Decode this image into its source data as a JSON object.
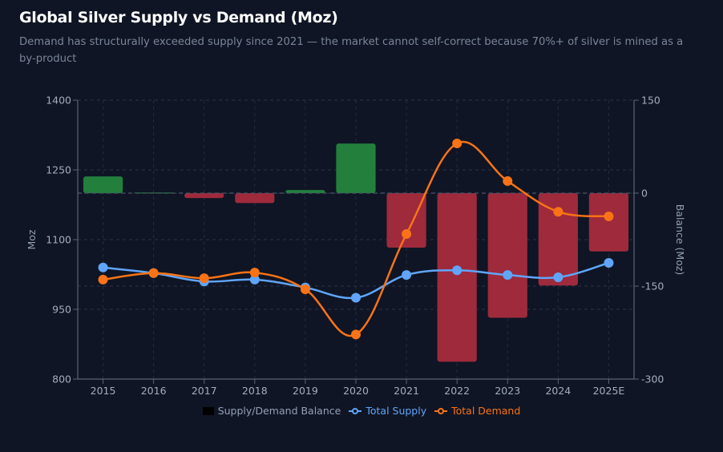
{
  "title": "Global Silver Supply vs Demand (Moz)",
  "subtitle": "Demand has structurally exceeded supply since 2021 — the market cannot self-correct because 70%+ of silver is mined as a by-product",
  "chart_data": {
    "type": "bar+line",
    "title": "Global Silver Supply vs Demand (Moz)",
    "categories": [
      "2015",
      "2016",
      "2017",
      "2018",
      "2019",
      "2020",
      "2021",
      "2022",
      "2023",
      "2024",
      "2025E"
    ],
    "left_axis": {
      "label": "Moz",
      "range": [
        800,
        1400
      ],
      "ticks": [
        800,
        950,
        1100,
        1250,
        1400
      ]
    },
    "right_axis": {
      "label": "Balance (Moz)",
      "range": [
        -300,
        150
      ],
      "ticks": [
        -300,
        -150,
        0,
        150
      ]
    },
    "grid": true,
    "legend_position": "bottom",
    "series": [
      {
        "name": "Supply/Demand Balance",
        "type": "bar",
        "axis": "right",
        "values": [
          27,
          1,
          -8,
          -16,
          5,
          80,
          -88,
          -272,
          -201,
          -149,
          -94
        ],
        "positive_color": "#22803c",
        "negative_color": "#9e2a3c",
        "legend_color": "#000000"
      },
      {
        "name": "Total Supply",
        "type": "line",
        "axis": "left",
        "values": [
          1040,
          1028,
          1010,
          1014,
          997,
          975,
          1024,
          1034,
          1024,
          1019,
          1050
        ],
        "color": "#60a5fa"
      },
      {
        "name": "Total Demand",
        "type": "line",
        "axis": "left",
        "values": [
          1014,
          1028,
          1017,
          1029,
          993,
          896,
          1112,
          1307,
          1226,
          1160,
          1150
        ],
        "color": "#f97316"
      }
    ]
  }
}
